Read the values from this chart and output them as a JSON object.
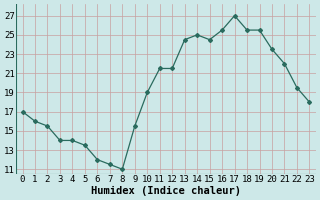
{
  "x": [
    0,
    1,
    2,
    3,
    4,
    5,
    6,
    7,
    8,
    9,
    10,
    11,
    12,
    13,
    14,
    15,
    16,
    17,
    18,
    19,
    20,
    21,
    22,
    23
  ],
  "y": [
    17,
    16,
    15.5,
    14,
    14,
    13.5,
    12,
    11.5,
    11,
    15.5,
    19,
    21.5,
    21.5,
    24.5,
    25,
    24.5,
    25.5,
    27,
    25.5,
    25.5,
    23.5,
    22,
    19.5,
    18
  ],
  "line_color": "#2a6b5e",
  "marker_color": "#2a6b5e",
  "bg_color": "#cde8e8",
  "grid_color": "#c8a0a0",
  "xlabel": "Humidex (Indice chaleur)",
  "xlabel_fontsize": 7.5,
  "tick_fontsize": 6.5,
  "yticks": [
    11,
    13,
    15,
    17,
    19,
    21,
    23,
    25,
    27
  ],
  "ylim": [
    10.5,
    28.2
  ],
  "xlim": [
    -0.5,
    23.5
  ]
}
